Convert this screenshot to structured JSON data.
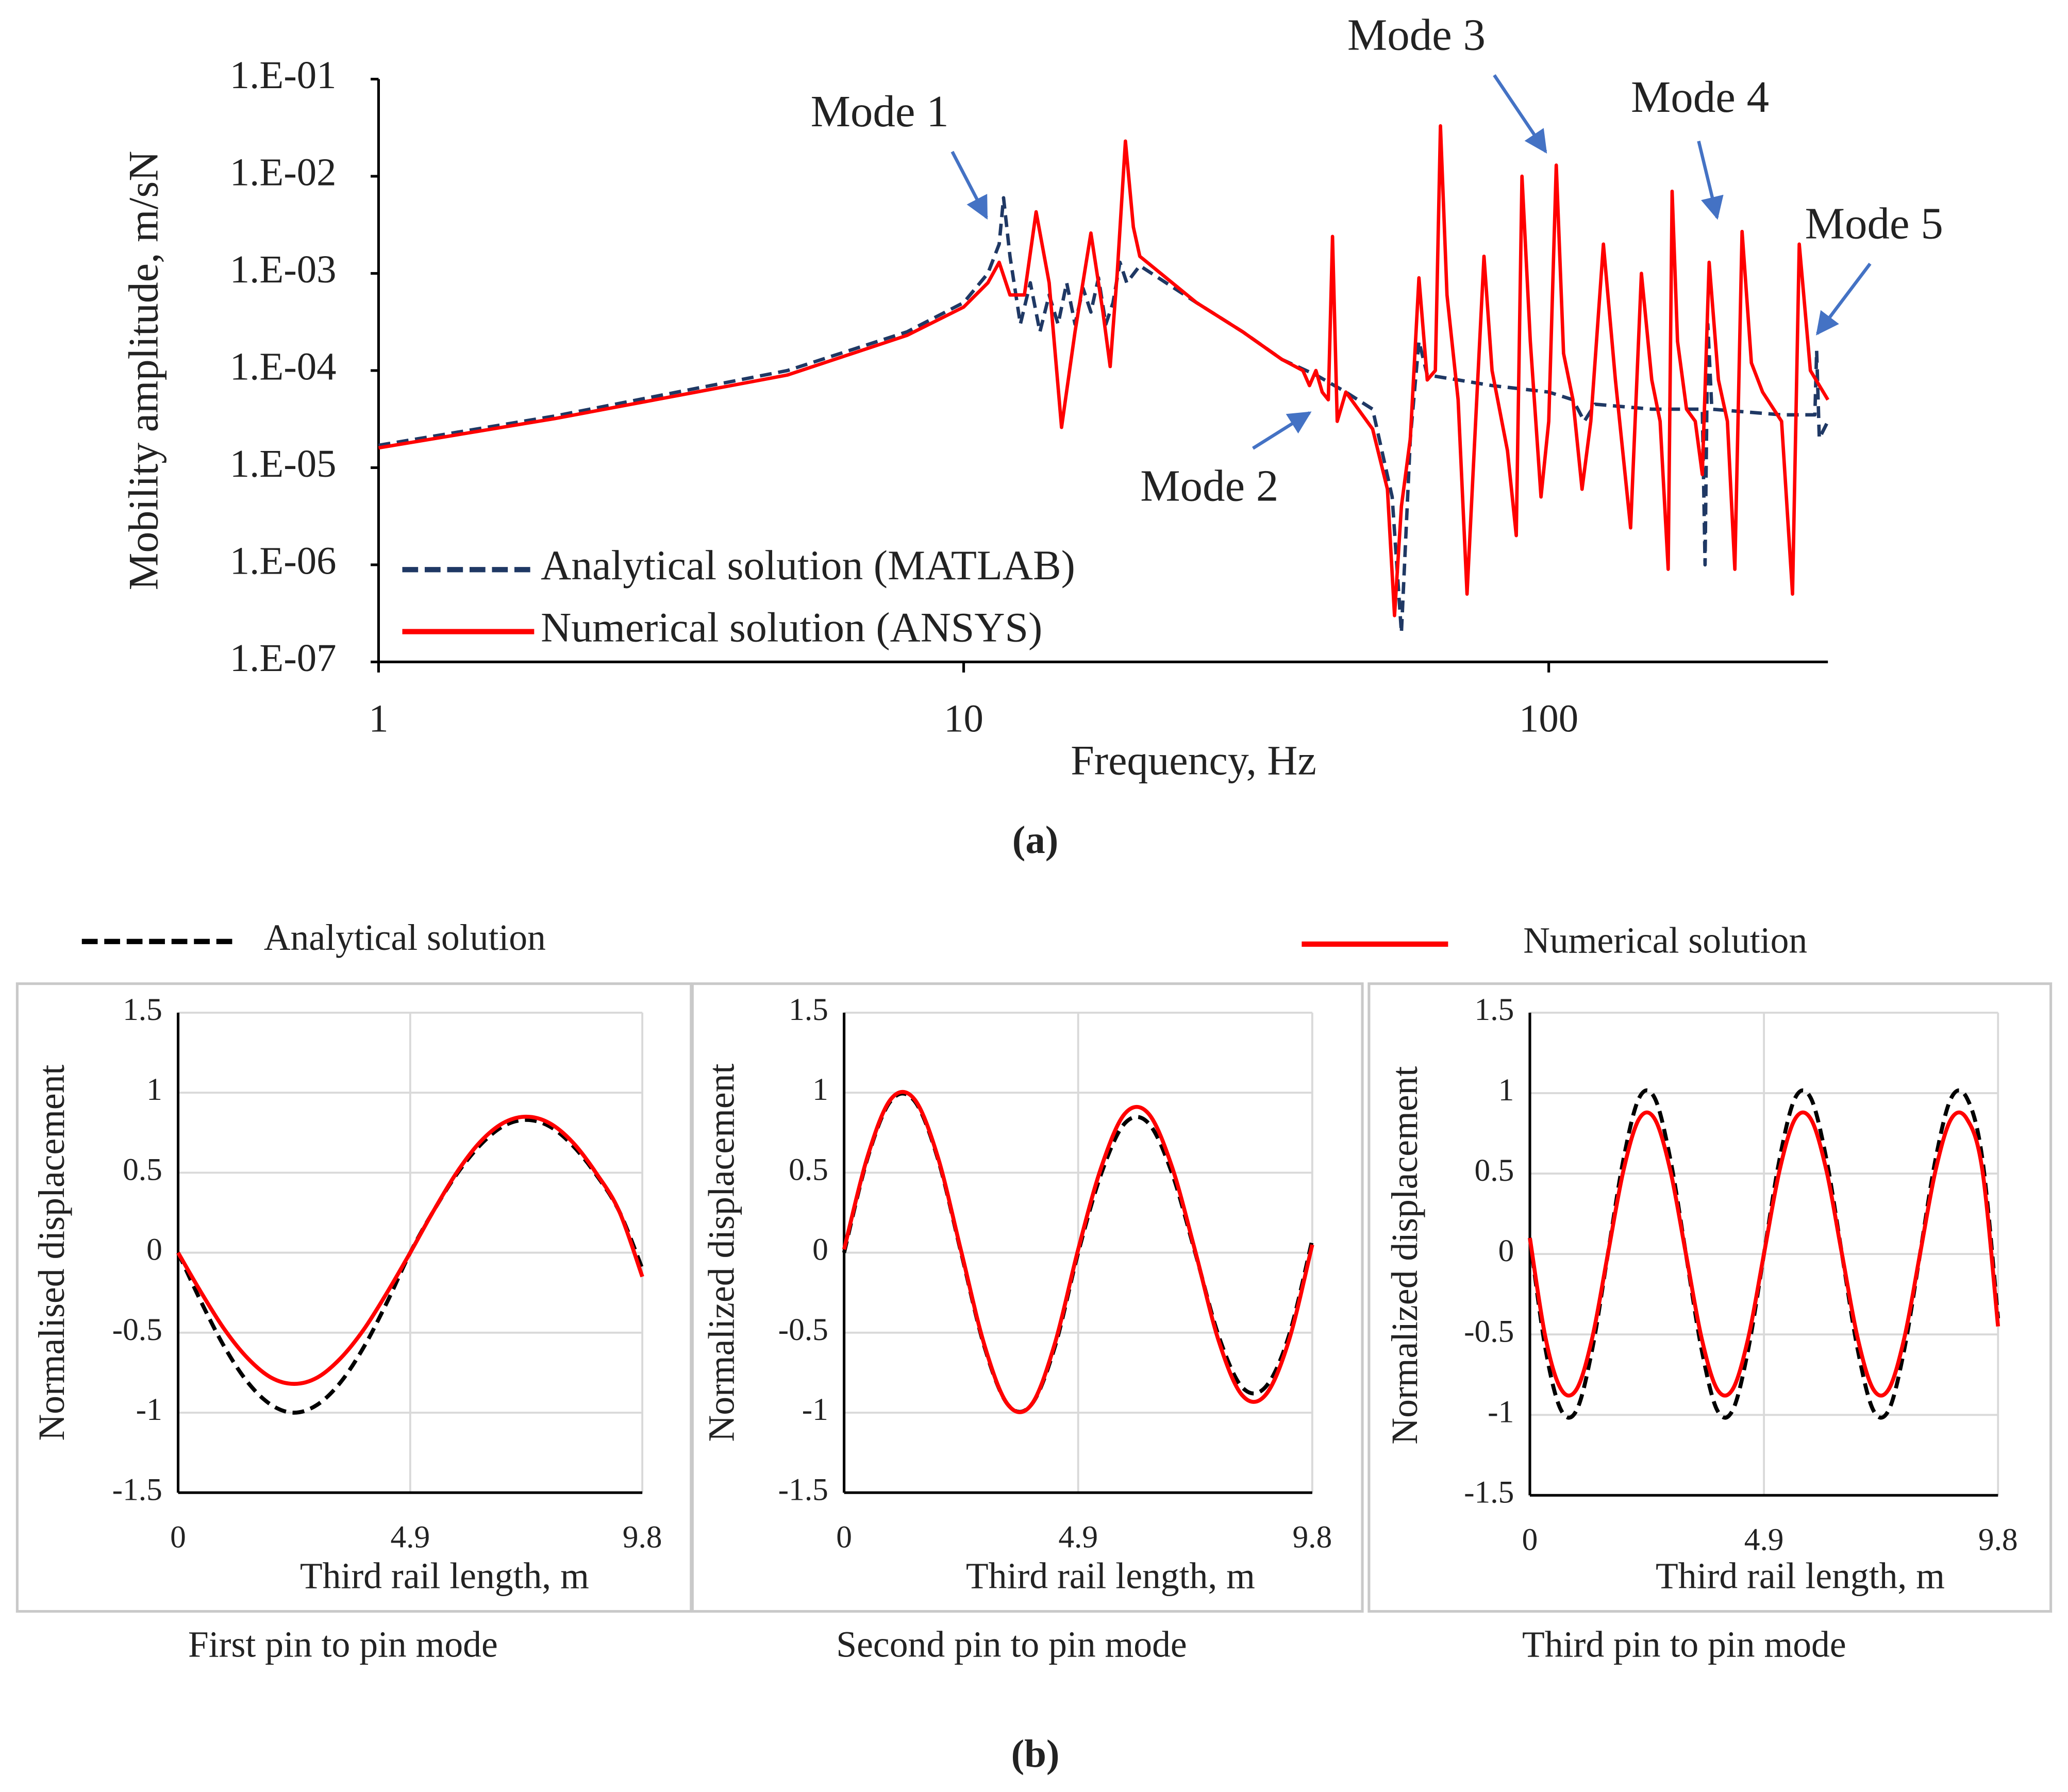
{
  "panel_labels": [
    "(a)",
    "(b)"
  ],
  "chart_data": [
    {
      "type": "line",
      "xscale": "log",
      "yscale": "log",
      "x_label": "Frequency, Hz",
      "y_label": "Mobility amplitude, m/sN",
      "xlim": [
        1,
        300
      ],
      "xticks": [
        1,
        10,
        100
      ],
      "ylim": [
        1e-07,
        0.1
      ],
      "yticks": [
        {
          "value": 1e-07,
          "label": "1.E-07"
        },
        {
          "value": 1e-06,
          "label": "1.E-06"
        },
        {
          "value": 1e-05,
          "label": "1.E-05"
        },
        {
          "value": 0.0001,
          "label": "1.E-04"
        },
        {
          "value": 0.001,
          "label": "1.E-03"
        },
        {
          "value": 0.01,
          "label": "1.E-02"
        },
        {
          "value": 0.1,
          "label": "1.E-01"
        }
      ],
      "legend": "lower left",
      "grid": false,
      "annotations": [
        "Mode 1",
        "Mode 2",
        "Mode 3",
        "Mode 4",
        "Mode 5"
      ],
      "series": [
        {
          "name": "Analytical solution (MATLAB)",
          "color": "#1f3864",
          "dash": true,
          "x": [
            1,
            2,
            5,
            8,
            10,
            11,
            11.5,
            11.7,
            12,
            12.5,
            13,
            13.5,
            14,
            14.5,
            15,
            15.5,
            16,
            16.5,
            17,
            17.5,
            18,
            18.5,
            19,
            20,
            25,
            30,
            35,
            40,
            45,
            50,
            54,
            56,
            58,
            60,
            62,
            70,
            80,
            100,
            110,
            115,
            120,
            150,
            183,
            185,
            187,
            190,
            250,
            285,
            287,
            290,
            300
          ],
          "values": [
            1.7e-05,
            3.4e-05,
            0.0001,
            0.00025,
            0.0005,
            0.001,
            0.002,
            0.006,
            0.0015,
            0.0003,
            0.0008,
            0.00025,
            0.0006,
            0.0003,
            0.0008,
            0.0003,
            0.0007,
            0.0004,
            0.0009,
            0.0003,
            0.0005,
            0.0013,
            0.0008,
            0.0012,
            0.0005,
            0.00025,
            0.00013,
            9e-05,
            6e-05,
            4e-05,
            5e-06,
            2e-07,
            2e-05,
            0.0002,
            9e-05,
            8e-05,
            7e-05,
            6e-05,
            5e-05,
            3e-05,
            4.5e-05,
            4e-05,
            4e-05,
            1e-06,
            0.0003,
            4e-05,
            3.5e-05,
            3.5e-05,
            0.00016,
            2e-05,
            3e-05
          ]
        },
        {
          "name": "Numerical solution (ANSYS)",
          "color": "#ff0000",
          "dash": false,
          "x": [
            1,
            2,
            5,
            8,
            10,
            11,
            11.5,
            12,
            12.7,
            13.3,
            14,
            14.7,
            15.5,
            16.5,
            17.3,
            17.8,
            18.3,
            18.9,
            19.5,
            20,
            25,
            30,
            35,
            38,
            39,
            40,
            41,
            42,
            42.7,
            43.5,
            45,
            50,
            53,
            54.5,
            56,
            58,
            60,
            62,
            64,
            65.3,
            67,
            70,
            72.5,
            75,
            77.5,
            80,
            85,
            88,
            90,
            93,
            97,
            100,
            103,
            106,
            110,
            114,
            118,
            124,
            130,
            138,
            144,
            150,
            155,
            160,
            162.5,
            166,
            172,
            178,
            183,
            188,
            195,
            202,
            208,
            214,
            222,
            232,
            250,
            261,
            268,
            280,
            300
          ],
          "values": [
            1.6e-05,
            3.2e-05,
            9e-05,
            0.00023,
            0.00045,
            0.0008,
            0.0013,
            0.0006,
            0.0006,
            0.0043,
            0.0008,
            2.6e-05,
            0.00025,
            0.0026,
            0.0004,
            0.00011,
            0.001,
            0.023,
            0.003,
            0.0015,
            0.0005,
            0.00025,
            0.00013,
            0.0001,
            7e-05,
            0.0001,
            6e-05,
            5e-05,
            0.0024,
            3e-05,
            6e-05,
            2.5e-05,
            6e-06,
            3e-07,
            4e-06,
            2e-05,
            0.0009,
            8e-05,
            0.0001,
            0.033,
            0.0006,
            5e-05,
            5e-07,
            3e-05,
            0.0015,
            0.0001,
            1.5e-05,
            2e-06,
            0.01,
            0.0002,
            5e-06,
            3e-05,
            0.013,
            0.00015,
            5e-05,
            6e-06,
            3e-05,
            0.002,
            8e-05,
            2.4e-06,
            0.001,
            8e-05,
            3e-05,
            9e-07,
            0.007,
            0.0002,
            4e-05,
            3e-05,
            8.5e-06,
            0.0013,
            8e-05,
            3e-05,
            9e-07,
            0.0027,
            0.00012,
            6e-05,
            3e-05,
            5e-07,
            0.002,
            0.0001,
            5e-05
          ]
        }
      ],
      "caption": "(a)"
    },
    {
      "type": "line",
      "smooth": true,
      "grid": true,
      "x_label": "Third rail length, m",
      "y_label": "Normalised displacement",
      "caption": "First pin to pin mode",
      "xlim": [
        0,
        9.8
      ],
      "xticks": [
        0,
        4.9,
        9.8
      ],
      "ylim": [
        -1.5,
        1.5
      ],
      "yticks": [
        -1.5,
        -1,
        -0.5,
        0,
        0.5,
        1,
        1.5
      ],
      "legend": "top",
      "x": [
        0,
        0.49,
        0.98,
        1.47,
        1.96,
        2.45,
        2.94,
        3.43,
        3.92,
        4.41,
        4.9,
        5.39,
        5.88,
        6.37,
        6.86,
        7.35,
        7.84,
        8.33,
        8.82,
        9.31,
        9.8
      ],
      "series": [
        {
          "name": "Analytical solution",
          "color": "#000000",
          "dash": true,
          "values": [
            0,
            -0.31,
            -0.59,
            -0.81,
            -0.95,
            -1,
            -0.95,
            -0.81,
            -0.59,
            -0.31,
            0,
            0.26,
            0.49,
            0.67,
            0.79,
            0.83,
            0.79,
            0.67,
            0.49,
            0.26,
            -0.1
          ]
        },
        {
          "name": "Numerical solution",
          "color": "#ff0000",
          "dash": false,
          "values": [
            0,
            -0.25,
            -0.48,
            -0.66,
            -0.78,
            -0.82,
            -0.78,
            -0.66,
            -0.48,
            -0.25,
            0,
            0.26,
            0.5,
            0.69,
            0.81,
            0.85,
            0.81,
            0.69,
            0.5,
            0.26,
            -0.15
          ]
        }
      ]
    },
    {
      "type": "line",
      "smooth": true,
      "grid": true,
      "x_label": "Third rail length, m",
      "y_label": "Normalized displacement",
      "caption": "Second pin to pin mode",
      "xlim": [
        0,
        9.8
      ],
      "xticks": [
        0,
        4.9,
        9.8
      ],
      "ylim": [
        -1.5,
        1.5
      ],
      "yticks": [
        -1.5,
        -1,
        -0.5,
        0,
        0.5,
        1,
        1.5
      ],
      "x": [
        0,
        0.49,
        0.98,
        1.47,
        1.96,
        2.45,
        2.94,
        3.43,
        3.92,
        4.41,
        4.9,
        5.39,
        5.88,
        6.37,
        6.86,
        7.35,
        7.84,
        8.33,
        8.82,
        9.31,
        9.8
      ],
      "series": [
        {
          "color": "#000000",
          "dash": true,
          "values": [
            0,
            0.59,
            0.95,
            0.95,
            0.59,
            0,
            -0.59,
            -0.95,
            -0.95,
            -0.59,
            0,
            0.5,
            0.81,
            0.81,
            0.5,
            0,
            -0.52,
            -0.84,
            -0.84,
            -0.52,
            0.08
          ]
        },
        {
          "color": "#ff0000",
          "dash": false,
          "values": [
            0.02,
            0.6,
            0.96,
            0.96,
            0.6,
            0.01,
            -0.58,
            -0.95,
            -0.95,
            -0.57,
            0.02,
            0.54,
            0.87,
            0.87,
            0.54,
            0.01,
            -0.55,
            -0.89,
            -0.89,
            -0.55,
            0.05
          ]
        }
      ]
    },
    {
      "type": "line",
      "smooth": true,
      "grid": true,
      "x_label": "Third rail length, m",
      "y_label": "Normalized displacement",
      "caption": "Third pin to pin mode",
      "xlim": [
        0,
        9.8
      ],
      "xticks": [
        0,
        4.9,
        9.8
      ],
      "ylim": [
        -1.5,
        1.5
      ],
      "yticks": [
        -1.5,
        -1,
        -0.5,
        0,
        0.5,
        1,
        1.5
      ],
      "x": [
        0,
        0.327,
        0.653,
        0.98,
        1.307,
        1.633,
        1.96,
        2.287,
        2.613,
        2.94,
        3.267,
        3.593,
        3.92,
        4.247,
        4.573,
        4.9,
        5.227,
        5.553,
        5.88,
        6.207,
        6.533,
        6.86,
        7.187,
        7.513,
        7.84,
        8.167,
        8.493,
        8.82,
        9.147,
        9.473,
        9.8
      ],
      "series": [
        {
          "color": "#000000",
          "dash": true,
          "values": [
            0.1,
            -0.59,
            -0.97,
            -0.97,
            -0.59,
            0,
            0.59,
            0.97,
            0.97,
            0.59,
            0,
            -0.59,
            -0.97,
            -0.97,
            -0.59,
            0,
            0.59,
            0.97,
            0.97,
            0.59,
            0,
            -0.59,
            -0.97,
            -0.97,
            -0.59,
            0,
            0.59,
            0.97,
            0.97,
            0.59,
            -0.4
          ]
        },
        {
          "color": "#ff0000",
          "dash": false,
          "values": [
            0.1,
            -0.52,
            -0.84,
            -0.84,
            -0.52,
            0,
            0.52,
            0.84,
            0.84,
            0.52,
            0,
            -0.52,
            -0.84,
            -0.84,
            -0.52,
            0,
            0.52,
            0.84,
            0.84,
            0.52,
            0,
            -0.52,
            -0.84,
            -0.84,
            -0.52,
            0,
            0.52,
            0.84,
            0.84,
            0.52,
            -0.45
          ]
        }
      ]
    }
  ]
}
